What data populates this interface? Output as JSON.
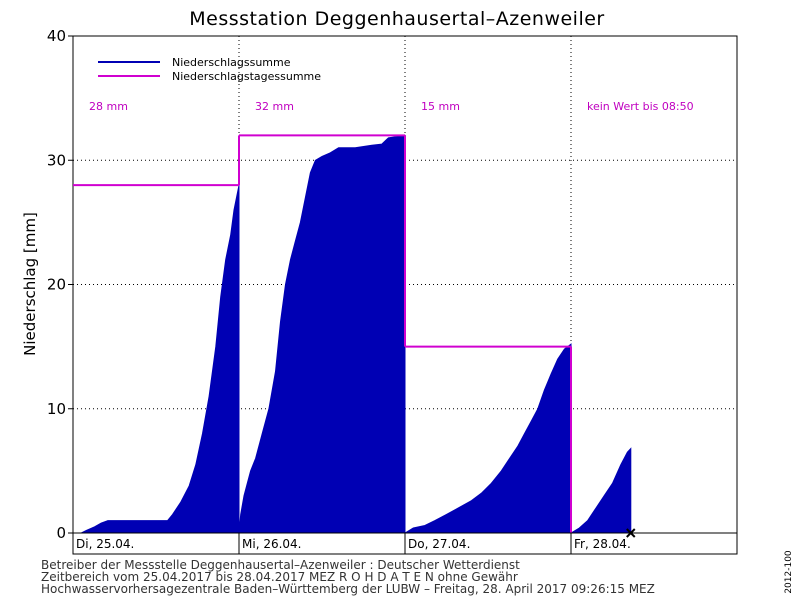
{
  "chart_data": {
    "type": "area",
    "title": "Messstation Deggenhausertal–Azenweiler",
    "ylabel": "Niederschlag [mm]",
    "xlabel": "",
    "ylim": [
      0,
      40
    ],
    "yticks": [
      0,
      10,
      20,
      30,
      40
    ],
    "xlim": [
      0,
      3.8
    ],
    "grid": true,
    "legend_position": "top-left",
    "colors": {
      "cumulative": "#0000b4",
      "daily": "#d000d0",
      "grid": "#000000"
    },
    "days": [
      {
        "label": "Di, 25.04.",
        "start": 0
      },
      {
        "label": "Mi, 26.04.",
        "start": 1
      },
      {
        "label": "Do, 27.04.",
        "start": 2
      },
      {
        "label": "Fr, 28.04.",
        "start": 3
      }
    ],
    "series": [
      {
        "name": "Niederschlagssumme",
        "type": "area",
        "segments": [
          [
            [
              0.0,
              0
            ],
            [
              0.05,
              0
            ],
            [
              0.08,
              0.2
            ],
            [
              0.13,
              0.5
            ],
            [
              0.17,
              0.8
            ],
            [
              0.21,
              1.0
            ],
            [
              0.3,
              1.0
            ],
            [
              0.4,
              1.0
            ],
            [
              0.5,
              1.0
            ],
            [
              0.57,
              1.0
            ],
            [
              0.6,
              1.5
            ],
            [
              0.65,
              2.5
            ],
            [
              0.7,
              3.8
            ],
            [
              0.74,
              5.5
            ],
            [
              0.78,
              8
            ],
            [
              0.82,
              11
            ],
            [
              0.86,
              15
            ],
            [
              0.89,
              19
            ],
            [
              0.92,
              22
            ],
            [
              0.95,
              24
            ],
            [
              0.97,
              26
            ],
            [
              1.0,
              28
            ]
          ],
          [
            [
              1.0,
              0
            ],
            [
              1.01,
              1.5
            ],
            [
              1.03,
              3
            ],
            [
              1.05,
              4
            ],
            [
              1.07,
              5
            ],
            [
              1.1,
              6
            ],
            [
              1.14,
              8
            ],
            [
              1.18,
              10
            ],
            [
              1.22,
              13
            ],
            [
              1.25,
              17
            ],
            [
              1.28,
              20
            ],
            [
              1.31,
              22
            ],
            [
              1.34,
              23.5
            ],
            [
              1.37,
              25
            ],
            [
              1.4,
              27
            ],
            [
              1.43,
              29
            ],
            [
              1.46,
              30
            ],
            [
              1.5,
              30.3
            ],
            [
              1.55,
              30.6
            ],
            [
              1.6,
              31
            ],
            [
              1.7,
              31
            ],
            [
              1.8,
              31.2
            ],
            [
              1.86,
              31.3
            ],
            [
              1.9,
              31.8
            ],
            [
              2.0,
              32
            ]
          ],
          [
            [
              2.0,
              0
            ],
            [
              2.05,
              0.4
            ],
            [
              2.12,
              0.6
            ],
            [
              2.18,
              1
            ],
            [
              2.25,
              1.5
            ],
            [
              2.32,
              2
            ],
            [
              2.4,
              2.6
            ],
            [
              2.46,
              3.2
            ],
            [
              2.52,
              4
            ],
            [
              2.58,
              5
            ],
            [
              2.63,
              6
            ],
            [
              2.68,
              7
            ],
            [
              2.72,
              8
            ],
            [
              2.76,
              9
            ],
            [
              2.8,
              10
            ],
            [
              2.84,
              11.5
            ],
            [
              2.88,
              12.8
            ],
            [
              2.92,
              14
            ],
            [
              2.96,
              14.8
            ],
            [
              3.0,
              15.2
            ]
          ],
          [
            [
              3.0,
              0
            ],
            [
              3.05,
              0.4
            ],
            [
              3.1,
              1
            ],
            [
              3.15,
              2
            ],
            [
              3.2,
              3
            ],
            [
              3.25,
              4
            ],
            [
              3.3,
              5.5
            ],
            [
              3.34,
              6.5
            ],
            [
              3.36,
              6.8
            ]
          ]
        ]
      },
      {
        "name": "Niederschlagstagessumme",
        "type": "step",
        "values": [
          28,
          32,
          15,
          null
        ]
      }
    ],
    "annotations": [
      {
        "day": 0,
        "text": "28 mm"
      },
      {
        "day": 1,
        "text": "32 mm"
      },
      {
        "day": 2,
        "text": "15 mm"
      },
      {
        "day": 3,
        "text": "kein Wert bis 08:50"
      }
    ],
    "current_marker": {
      "x": 3.36,
      "y": 0
    }
  },
  "footer": {
    "line1": "Betreiber der Messstelle Deggenhausertal–Azenweiler : Deutscher Wetterdienst",
    "line2": "Zeitbereich vom 25.04.2017 bis 28.04.2017    MEZ    R O H D A T E N ohne Gewähr",
    "line3": "Hochwasservorhersagezentrale Baden–Württemberg der LUBW – Freitag, 28. April 2017 09:26:15 MEZ"
  },
  "code": "2012-100"
}
